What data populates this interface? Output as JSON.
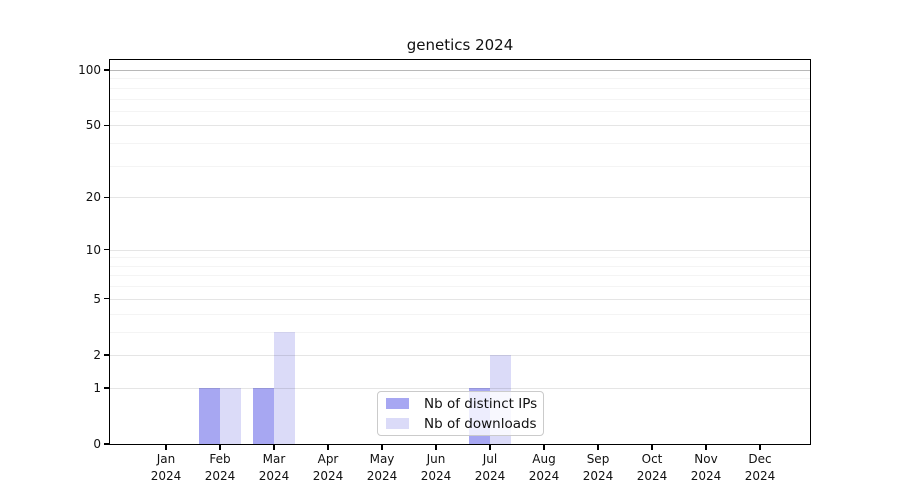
{
  "chart_data": {
    "type": "bar",
    "title": "genetics 2024",
    "x_year_label": "2024",
    "categories": [
      "Jan",
      "Feb",
      "Mar",
      "Apr",
      "May",
      "Jun",
      "Jul",
      "Aug",
      "Sep",
      "Oct",
      "Nov",
      "Dec"
    ],
    "series": [
      {
        "name": "Nb of distinct IPs",
        "color": "#a7a7f2",
        "values": [
          0,
          1,
          1,
          0,
          0,
          0,
          1,
          0,
          0,
          0,
          0,
          0
        ]
      },
      {
        "name": "Nb of downloads",
        "color": "#dbdbf8",
        "values": [
          0,
          1,
          3,
          0,
          0,
          0,
          2,
          0,
          0,
          0,
          0,
          0
        ]
      }
    ],
    "y_axis": {
      "scale": "log1p",
      "ticks": [
        0,
        1,
        2,
        5,
        10,
        20,
        50,
        100
      ],
      "minor_ticks": [
        3,
        4,
        6,
        7,
        8,
        9,
        30,
        40,
        60,
        70,
        80,
        90
      ],
      "ylim": [
        0,
        100
      ]
    },
    "legend": {
      "position": "inside-bottom-center",
      "frame": true
    },
    "grid": true
  }
}
